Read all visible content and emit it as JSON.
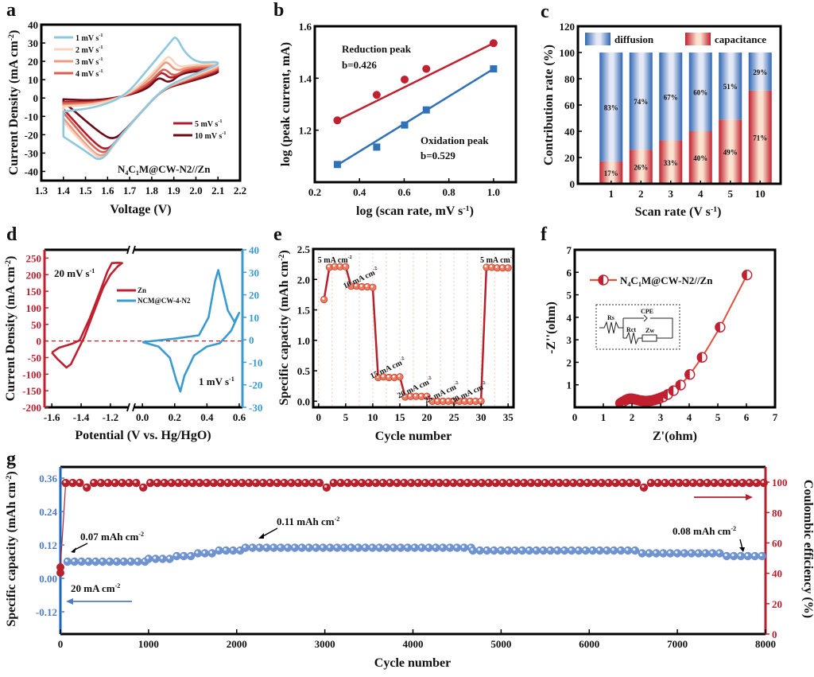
{
  "chart_data": [
    {
      "panel": "a",
      "type": "line",
      "title": "",
      "xlabel": "Voltage (V)",
      "ylabel": "Current Density (mA cm-2)",
      "xlim": [
        1.3,
        2.2
      ],
      "ylim": [
        -45,
        40
      ],
      "xticks": [
        1.3,
        1.4,
        1.5,
        1.6,
        1.7,
        1.8,
        1.9,
        2.0,
        2.1,
        2.2
      ],
      "yticks": [
        -40,
        -30,
        -20,
        -10,
        0,
        10,
        20,
        30,
        40
      ],
      "annotation": "N4C1M@CW-N2//Zn",
      "legend_top_left": [
        "1 mV s-1",
        "2 mV s-1",
        "3 mV s-1",
        "4 mV s-1"
      ],
      "legend_bottom_right": [
        "5 mV s-1",
        "10 mV s-1"
      ],
      "series": [
        {
          "name": "1 mV s-1",
          "color": "#8ec8de",
          "anodic_peak": [
            1.91,
            34
          ],
          "cathodic_peak": [
            1.57,
            -35
          ],
          "start": [
            1.4,
            -21
          ],
          "end": [
            2.1,
            20
          ]
        },
        {
          "name": "2 mV s-1",
          "color": "#f9d4bd",
          "anodic_peak": [
            1.88,
            23
          ],
          "cathodic_peak": [
            1.58,
            -34
          ],
          "start": [
            1.4,
            -13
          ],
          "end": [
            2.1,
            19
          ]
        },
        {
          "name": "3 mV s-1",
          "color": "#ef9a7e",
          "anodic_peak": [
            1.87,
            20
          ],
          "cathodic_peak": [
            1.58,
            -33
          ],
          "start": [
            1.4,
            -11
          ],
          "end": [
            2.1,
            18
          ]
        },
        {
          "name": "4 mV s-1",
          "color": "#d9604e",
          "anodic_peak": [
            1.86,
            16
          ],
          "cathodic_peak": [
            1.59,
            -31
          ],
          "start": [
            1.4,
            -8
          ],
          "end": [
            2.1,
            17
          ]
        },
        {
          "name": "5 mV s-1",
          "color": "#b21e2b",
          "anodic_peak": [
            1.85,
            14
          ],
          "cathodic_peak": [
            1.6,
            -29
          ],
          "start": [
            1.4,
            -6
          ],
          "end": [
            2.1,
            16
          ]
        },
        {
          "name": "10 mV s-1",
          "color": "#6b0b16",
          "anodic_peak": [
            1.84,
            11
          ],
          "cathodic_peak": [
            1.63,
            -23
          ],
          "start": [
            1.4,
            -2
          ],
          "end": [
            2.1,
            15
          ]
        }
      ]
    },
    {
      "panel": "b",
      "type": "scatter",
      "xlabel": "log (scan rate, mV s-1)",
      "ylabel": "log (peak current, mA)",
      "xlim": [
        0.2,
        1.1
      ],
      "ylim": [
        1.0,
        1.6
      ],
      "xticks": [
        0.2,
        0.4,
        0.6,
        0.8,
        1.0
      ],
      "yticks": [
        1.2,
        1.4,
        1.6
      ],
      "series": [
        {
          "name": "Reduction peak",
          "slope_label": "b=0.426",
          "color": "#c0202f",
          "marker": "circle",
          "x": [
            0.301,
            0.477,
            0.602,
            0.699,
            1.0
          ],
          "y": [
            1.238,
            1.336,
            1.395,
            1.436,
            1.535
          ],
          "fit": [
            [
              0.301,
              1.238
            ],
            [
              1.0,
              1.535
            ]
          ]
        },
        {
          "name": "Oxidation peak",
          "slope_label": "b=0.529",
          "color": "#2f72b8",
          "marker": "square",
          "x": [
            0.301,
            0.477,
            0.602,
            0.699,
            1.0
          ],
          "y": [
            1.068,
            1.135,
            1.22,
            1.278,
            1.436
          ],
          "fit": [
            [
              0.301,
              1.066
            ],
            [
              1.0,
              1.436
            ]
          ]
        }
      ]
    },
    {
      "panel": "c",
      "type": "bar",
      "stacked": true,
      "xlabel": "Scan rate (V s-1)",
      "ylabel": "Contribution rate (%)",
      "ylim": [
        0,
        120
      ],
      "yticks": [
        0,
        20,
        40,
        60,
        80,
        100,
        120
      ],
      "categories": [
        "1",
        "2",
        "3",
        "4",
        "5",
        "10"
      ],
      "series": [
        {
          "name": "capacitance",
          "color": "#c0202f",
          "values": [
            17,
            26,
            33,
            40,
            49,
            71
          ],
          "labels": [
            "17%",
            "26%",
            "33%",
            "40%",
            "49%",
            "71%"
          ]
        },
        {
          "name": "diffusion",
          "color": "#2f66b3",
          "values": [
            83,
            74,
            67,
            60,
            51,
            29
          ],
          "labels": [
            "83%",
            "74%",
            "67%",
            "60%",
            "51%",
            "29%"
          ]
        }
      ],
      "legend": [
        "diffusion",
        "capacitance"
      ]
    },
    {
      "panel": "d",
      "type": "line",
      "xlabel": "Potential (V vs. Hg/HgO)",
      "ylabel": "Current Density (mA cm-2)",
      "axis_break": true,
      "left_xlim": [
        -1.65,
        -1.08
      ],
      "right_xlim": [
        -0.05,
        0.62
      ],
      "xticks_left": [
        -1.6,
        -1.4,
        -1.2
      ],
      "xticks_right": [
        0.0,
        0.2,
        0.4,
        0.6
      ],
      "ylim_left": [
        -200,
        275
      ],
      "yticks_left": [
        -200,
        -150,
        -100,
        -50,
        0,
        50,
        100,
        150,
        200,
        250
      ],
      "ylim_right": [
        -30,
        40
      ],
      "yticks_right": [
        -30,
        -20,
        -10,
        0,
        10,
        20,
        30,
        40
      ],
      "annotations": [
        "20 mV s-1",
        "1 mV s-1"
      ],
      "series": [
        {
          "name": "Zn",
          "color": "#c0202f",
          "axis": "left",
          "points": [
            [
              -1.6,
              -35
            ],
            [
              -1.56,
              -55
            ],
            [
              -1.5,
              -80
            ],
            [
              -1.47,
              -70
            ],
            [
              -1.42,
              -25
            ],
            [
              -1.38,
              10
            ],
            [
              -1.32,
              80
            ],
            [
              -1.25,
              160
            ],
            [
              -1.2,
              200
            ],
            [
              -1.15,
              225
            ],
            [
              -1.12,
              235
            ],
            [
              -1.15,
              236
            ],
            [
              -1.19,
              235
            ],
            [
              -1.22,
              210
            ],
            [
              -1.27,
              150
            ],
            [
              -1.34,
              70
            ],
            [
              -1.41,
              2
            ],
            [
              -1.46,
              -8
            ],
            [
              -1.55,
              -20
            ],
            [
              -1.6,
              -35
            ]
          ]
        },
        {
          "name": "NCM@CW-4-N2",
          "color": "#3a9bd0",
          "axis": "right",
          "points": [
            [
              0.0,
              -1
            ],
            [
              0.1,
              -3
            ],
            [
              0.17,
              -8
            ],
            [
              0.21,
              -18
            ],
            [
              0.235,
              -23
            ],
            [
              0.26,
              -16
            ],
            [
              0.32,
              -7
            ],
            [
              0.4,
              -3
            ],
            [
              0.48,
              -1.5
            ],
            [
              0.55,
              4
            ],
            [
              0.6,
              12
            ],
            [
              0.57,
              8
            ],
            [
              0.53,
              13
            ],
            [
              0.49,
              25
            ],
            [
              0.47,
              31
            ],
            [
              0.45,
              26
            ],
            [
              0.41,
              10
            ],
            [
              0.35,
              2
            ],
            [
              0.2,
              0.5
            ],
            [
              0.0,
              -1
            ]
          ]
        }
      ]
    },
    {
      "panel": "e",
      "type": "line",
      "xlabel": "Cycle number",
      "ylabel": "Specific capacity (mAh cm-2)",
      "xlim": [
        -1,
        36
      ],
      "ylim": [
        -0.1,
        2.5
      ],
      "xticks": [
        0,
        5,
        10,
        15,
        20,
        25,
        30,
        35
      ],
      "yticks": [
        0.0,
        0.5,
        1.0,
        1.5,
        2.0,
        2.5
      ],
      "color": "#b8202c",
      "marker_color": "#ec7b63",
      "x": [
        1,
        2,
        3,
        4,
        5,
        6,
        7,
        8,
        9,
        10,
        11,
        12,
        13,
        14,
        15,
        16,
        17,
        18,
        19,
        20,
        21,
        22,
        23,
        24,
        25,
        26,
        27,
        28,
        29,
        30,
        31,
        32,
        33,
        34,
        35
      ],
      "y": [
        1.67,
        2.2,
        2.21,
        2.21,
        2.21,
        1.89,
        1.89,
        1.88,
        1.88,
        1.87,
        0.39,
        0.4,
        0.39,
        0.39,
        0.4,
        0.07,
        0.08,
        0.08,
        0.08,
        0.08,
        0.0,
        0.0,
        0.0,
        0.0,
        0.0,
        0.0,
        0.0,
        0.0,
        0.0,
        0.0,
        2.2,
        2.2,
        2.19,
        2.19,
        2.19
      ],
      "rate_labels": [
        {
          "text": "5 mA cm-2",
          "at": [
            3,
            2.28
          ]
        },
        {
          "text": "10 mA cm-2",
          "at": [
            8,
            1.98
          ]
        },
        {
          "text": "15 mA cm-2",
          "at": [
            13,
            0.5
          ]
        },
        {
          "text": "20 mA cm-2",
          "at": [
            18,
            0.18
          ]
        },
        {
          "text": "25 mA cm-2",
          "at": [
            23,
            0.1
          ]
        },
        {
          "text": "30 mA cm-2",
          "at": [
            28,
            0.1
          ]
        },
        {
          "text": "5 mA cm-2",
          "at": [
            33,
            2.28
          ]
        }
      ]
    },
    {
      "panel": "f",
      "type": "scatter",
      "xlabel": "Z'(ohm)",
      "ylabel": "-Z''(ohm)",
      "xlim": [
        0,
        7
      ],
      "ylim": [
        0,
        7
      ],
      "xticks": [
        0,
        1,
        2,
        3,
        4,
        5,
        6,
        7
      ],
      "yticks": [
        1,
        2,
        3,
        4,
        5,
        6,
        7
      ],
      "legend": "N4C1M@CW-N2//Zn",
      "color": "#c0202f",
      "circuit_labels": [
        "Rs",
        "CPE",
        "Rct",
        "Zw"
      ],
      "x": [
        1.6,
        1.65,
        1.7,
        1.78,
        1.85,
        1.92,
        2.0,
        2.08,
        2.15,
        2.22,
        2.3,
        2.38,
        2.45,
        2.52,
        2.6,
        2.68,
        2.76,
        2.84,
        2.92,
        3.0,
        3.1,
        3.25,
        3.45,
        3.7,
        4.02,
        4.45,
        5.08,
        6.02
      ],
      "y": [
        0.18,
        0.22,
        0.26,
        0.32,
        0.36,
        0.38,
        0.38,
        0.36,
        0.34,
        0.32,
        0.3,
        0.29,
        0.28,
        0.28,
        0.29,
        0.3,
        0.32,
        0.35,
        0.38,
        0.42,
        0.47,
        0.57,
        0.74,
        0.99,
        1.46,
        2.22,
        3.56,
        5.88
      ]
    },
    {
      "panel": "g",
      "type": "scatter",
      "xlabel": "Cycle number",
      "ylabel_left": "Specific capacity (mAh cm-2)",
      "ylabel_right": "Coulombic efficiency (%)",
      "xlim": [
        0,
        8000
      ],
      "xticks": [
        0,
        1000,
        2000,
        3000,
        4000,
        5000,
        6000,
        7000,
        8000
      ],
      "ylim_left": [
        -0.2,
        0.4
      ],
      "yticks_left": [
        -0.12,
        0.0,
        0.12,
        0.24,
        0.36
      ],
      "ylim_right": [
        0,
        110
      ],
      "yticks_right": [
        0,
        20,
        40,
        60,
        80,
        100
      ],
      "annotations": [
        {
          "text": "0.07 mAh cm-2",
          "points_to": [
            100,
            0.07
          ]
        },
        {
          "text": "0.11 mAh cm-2",
          "points_to": [
            2250,
            0.11
          ]
        },
        {
          "text": "0.08 mAh cm-2",
          "points_to": [
            7750,
            0.08
          ]
        },
        {
          "text": "20 mA cm-2"
        }
      ],
      "series": [
        {
          "name": "Specific capacity",
          "axis": "left",
          "color": "#6f93cf",
          "steps": [
            [
              0,
              80,
              0.07
            ],
            [
              80,
              1000,
              0.06
            ],
            [
              1000,
              1320,
              0.07
            ],
            [
              1320,
              1560,
              0.08
            ],
            [
              1560,
              1800,
              0.09
            ],
            [
              1800,
              2100,
              0.1
            ],
            [
              2100,
              4680,
              0.11
            ],
            [
              4680,
              6600,
              0.1
            ],
            [
              6600,
              7560,
              0.09
            ],
            [
              7560,
              8000,
              0.08
            ]
          ],
          "first_point": [
            0,
            0.02
          ]
        },
        {
          "name": "Coulombic efficiency",
          "axis": "right",
          "color": "#b8202c",
          "level": 99.5,
          "dips": [
            320,
            960,
            3050,
            6600
          ],
          "first_point": [
            0,
            44
          ]
        }
      ]
    }
  ],
  "panel_letters": [
    "a",
    "b",
    "c",
    "d",
    "e",
    "f",
    "g"
  ]
}
